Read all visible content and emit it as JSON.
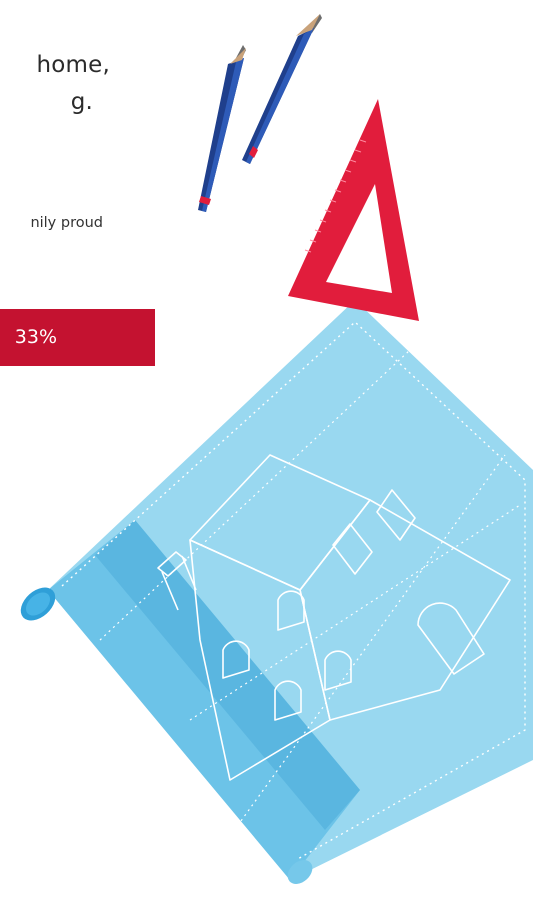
{
  "heading": {
    "line_1": "home,",
    "line_2": "g."
  },
  "caption": {
    "text": "nily proud"
  },
  "stat": {
    "value": "33%",
    "bar_color": "#c41230"
  },
  "colors": {
    "blueprint": "#99d8f0",
    "blueprint_shadow": "#5ab6e0",
    "pencil": "#1f3f8c",
    "set_square": "#e11d3c"
  },
  "icons": [
    "pencil-icon",
    "set-square-icon",
    "blueprint-roll-icon",
    "house-drawing-icon"
  ]
}
